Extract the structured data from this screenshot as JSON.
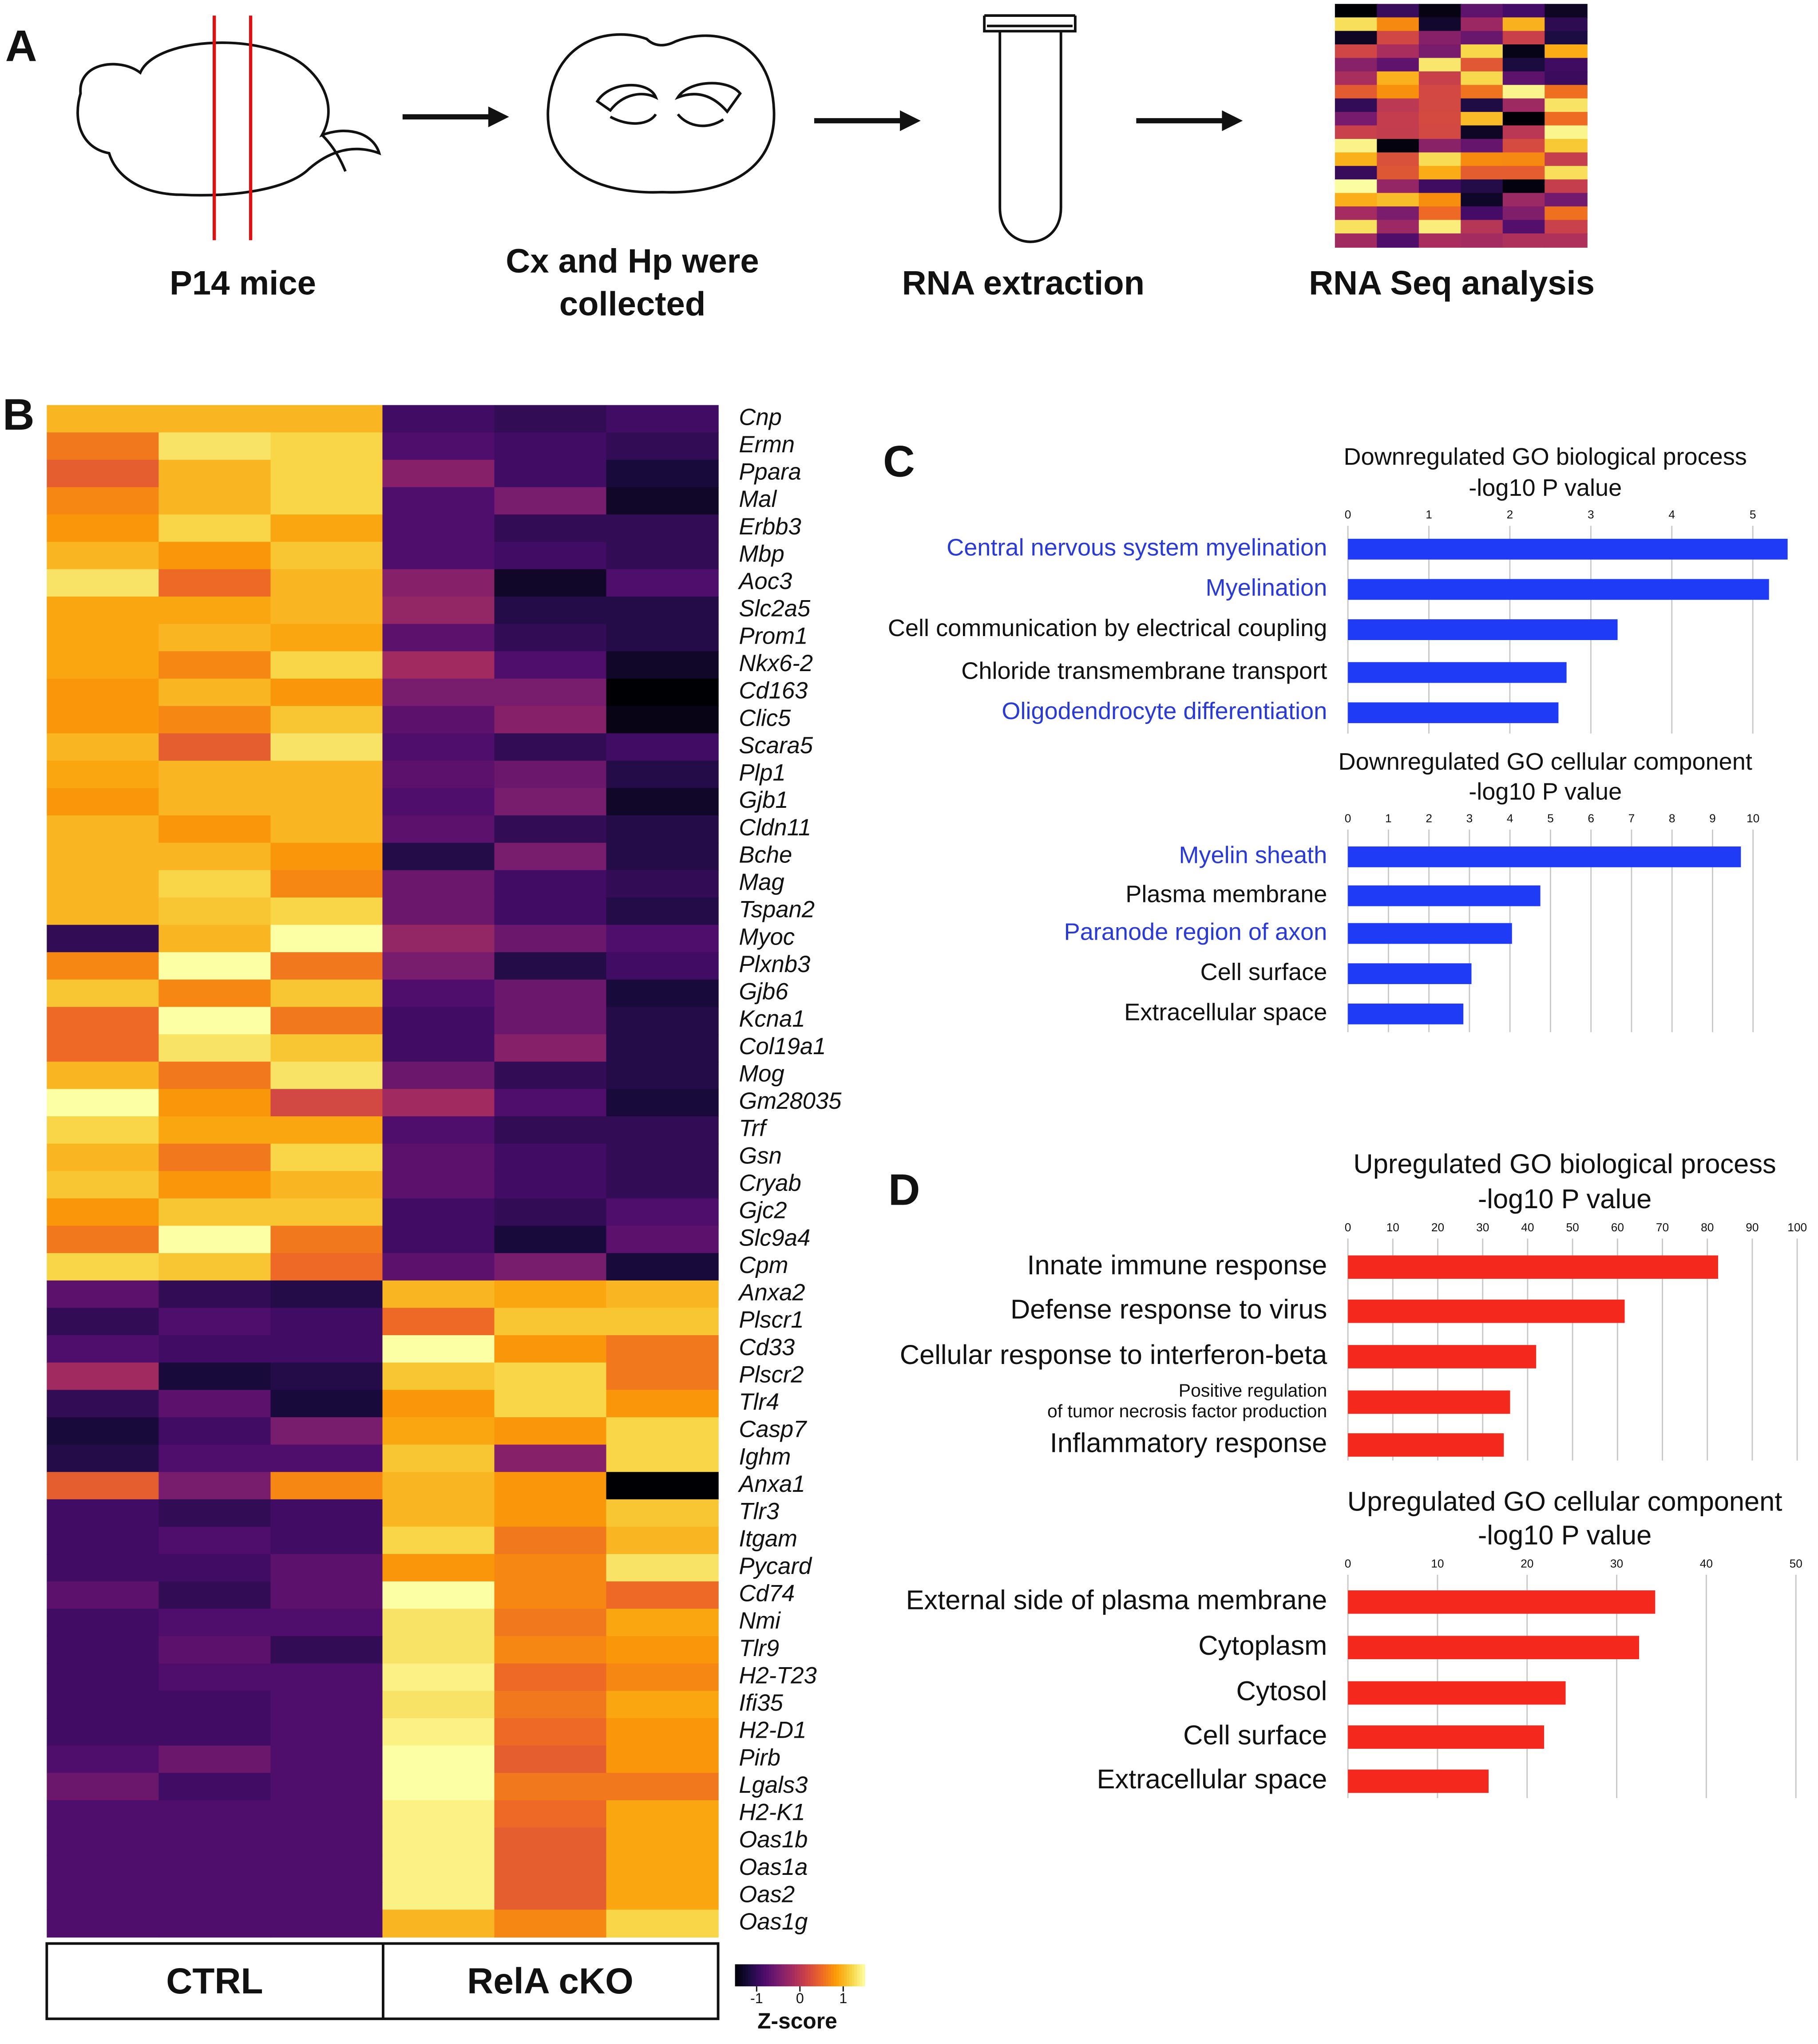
{
  "panels": [
    "A",
    "B",
    "C",
    "D"
  ],
  "workflow": {
    "steps": [
      [
        "P14 mice"
      ],
      [
        "Cx and Hp were",
        "collected"
      ],
      [
        "RNA extraction"
      ],
      [
        "RNA Seq analysis"
      ]
    ]
  },
  "chart_data": [
    {
      "type": "heatmap",
      "rows": [
        "Cnp",
        "Ermn",
        "Ppara",
        "Mal",
        "Erbb3",
        "Mbp",
        "Aoc3",
        "Slc2a5",
        "Prom1",
        "Nkx6-2",
        "Cd163",
        "Clic5",
        "Scara5",
        "Plp1",
        "Gjb1",
        "Cldn11",
        "Bche",
        "Mag",
        "Tspan2",
        "Myoc",
        "Plxnb3",
        "Gjb6",
        "Kcna1",
        "Col19a1",
        "Mog",
        "Gm28035",
        "Trf",
        "Gsn",
        "Cryab",
        "Gjc2",
        "Slc9a4",
        "Cpm",
        "Anxa2",
        "Plscr1",
        "Cd33",
        "Plscr2",
        "Tlr4",
        "Casp7",
        "Ighm",
        "Anxa1",
        "Tlr3",
        "Itgam",
        "Pycard",
        "Cd74",
        "Nmi",
        "Tlr9",
        "H2-T23",
        "Ifi35",
        "H2-D1",
        "Pirb",
        "Lgals3",
        "H2-K1",
        "Oas1b",
        "Oas1a",
        "Oas2",
        "Oas1g"
      ],
      "groups": [
        "CTRL",
        "RelA cKO"
      ],
      "values": [
        [
          1.0,
          1.0,
          1.0,
          -0.9,
          -1.0,
          -0.9
        ],
        [
          0.6,
          1.3,
          1.2,
          -0.8,
          -0.9,
          -1.0
        ],
        [
          0.4,
          1.0,
          1.2,
          -0.4,
          -0.9,
          -1.2
        ],
        [
          0.7,
          1.0,
          1.2,
          -0.8,
          -0.5,
          -1.3
        ],
        [
          0.8,
          1.2,
          0.9,
          -0.8,
          -1.0,
          -1.0
        ],
        [
          1.0,
          0.8,
          1.1,
          -0.8,
          -0.9,
          -1.0
        ],
        [
          1.3,
          0.5,
          1.0,
          -0.4,
          -1.3,
          -0.8
        ],
        [
          0.9,
          0.9,
          1.0,
          -0.3,
          -1.1,
          -1.1
        ],
        [
          0.9,
          1.0,
          0.9,
          -0.7,
          -1.0,
          -1.1
        ],
        [
          0.9,
          0.7,
          1.2,
          -0.2,
          -0.8,
          -1.3
        ],
        [
          0.8,
          1.0,
          0.8,
          -0.5,
          -0.5,
          -1.5
        ],
        [
          0.8,
          0.7,
          1.1,
          -0.7,
          -0.4,
          -1.4
        ],
        [
          1.0,
          0.4,
          1.3,
          -0.8,
          -1.0,
          -0.9
        ],
        [
          0.9,
          1.0,
          1.0,
          -0.7,
          -0.6,
          -1.1
        ],
        [
          0.8,
          1.0,
          1.0,
          -0.8,
          -0.5,
          -1.3
        ],
        [
          1.0,
          0.8,
          1.0,
          -0.7,
          -1.0,
          -1.1
        ],
        [
          1.0,
          1.0,
          0.8,
          -1.1,
          -0.5,
          -1.1
        ],
        [
          1.0,
          1.2,
          0.7,
          -0.6,
          -0.9,
          -1.0
        ],
        [
          1.0,
          1.1,
          1.2,
          -0.6,
          -0.9,
          -1.1
        ],
        [
          -1.0,
          1.0,
          1.6,
          -0.3,
          -0.6,
          -0.8
        ],
        [
          0.7,
          1.5,
          0.6,
          -0.5,
          -1.1,
          -0.9
        ],
        [
          1.1,
          0.7,
          1.1,
          -0.8,
          -0.6,
          -1.2
        ],
        [
          0.5,
          1.6,
          0.6,
          -0.9,
          -0.6,
          -1.1
        ],
        [
          0.5,
          1.3,
          1.1,
          -0.9,
          -0.4,
          -1.1
        ],
        [
          1.0,
          0.6,
          1.3,
          -0.6,
          -1.0,
          -1.1
        ],
        [
          1.5,
          0.8,
          0.2,
          -0.2,
          -0.8,
          -1.2
        ],
        [
          1.2,
          0.9,
          0.9,
          -0.8,
          -1.0,
          -1.0
        ],
        [
          1.0,
          0.6,
          1.2,
          -0.7,
          -0.9,
          -1.0
        ],
        [
          1.1,
          0.8,
          1.0,
          -0.7,
          -0.9,
          -1.0
        ],
        [
          0.8,
          1.1,
          1.1,
          -0.9,
          -1.0,
          -0.8
        ],
        [
          0.6,
          1.5,
          0.6,
          -0.9,
          -1.2,
          -0.7
        ],
        [
          1.2,
          1.1,
          0.5,
          -0.7,
          -0.5,
          -1.2
        ],
        [
          -0.7,
          -1.0,
          -1.1,
          1.0,
          0.9,
          1.0
        ],
        [
          -1.0,
          -0.8,
          -0.9,
          0.5,
          1.1,
          1.1
        ],
        [
          -0.8,
          -0.9,
          -0.9,
          1.5,
          0.8,
          0.6
        ],
        [
          -0.2,
          -1.2,
          -1.1,
          1.1,
          1.2,
          0.6
        ],
        [
          -1.0,
          -0.7,
          -1.2,
          0.8,
          1.2,
          0.8
        ],
        [
          -1.2,
          -0.9,
          -0.5,
          0.9,
          0.8,
          1.2
        ],
        [
          -1.1,
          -0.8,
          -0.8,
          1.1,
          -0.4,
          1.2
        ],
        [
          0.4,
          -0.5,
          0.7,
          1.0,
          0.8,
          -1.7
        ],
        [
          -0.9,
          -1.0,
          -0.9,
          1.0,
          0.8,
          1.1
        ],
        [
          -0.9,
          -0.8,
          -0.9,
          1.2,
          0.6,
          1.0
        ],
        [
          -0.9,
          -0.9,
          -0.7,
          0.8,
          0.7,
          1.3
        ],
        [
          -0.7,
          -1.0,
          -0.7,
          1.5,
          0.7,
          0.5
        ],
        [
          -0.9,
          -0.8,
          -0.8,
          1.3,
          0.6,
          0.9
        ],
        [
          -0.9,
          -0.7,
          -1.0,
          1.3,
          0.7,
          0.8
        ],
        [
          -0.9,
          -0.8,
          -0.8,
          1.4,
          0.5,
          0.7
        ],
        [
          -0.9,
          -0.9,
          -0.8,
          1.3,
          0.6,
          0.9
        ],
        [
          -0.9,
          -0.9,
          -0.8,
          1.4,
          0.5,
          0.8
        ],
        [
          -0.8,
          -0.6,
          -0.8,
          1.5,
          0.4,
          0.8
        ],
        [
          -0.6,
          -0.9,
          -0.8,
          1.5,
          0.6,
          0.6
        ],
        [
          -0.8,
          -0.8,
          -0.8,
          1.4,
          0.5,
          0.9
        ],
        [
          -0.8,
          -0.8,
          -0.8,
          1.4,
          0.4,
          0.9
        ],
        [
          -0.8,
          -0.8,
          -0.8,
          1.4,
          0.4,
          0.9
        ],
        [
          -0.8,
          -0.8,
          -0.8,
          1.4,
          0.4,
          0.9
        ],
        [
          -0.8,
          -0.8,
          -0.8,
          1.0,
          0.7,
          1.2
        ]
      ],
      "zlim": [
        -1.5,
        1.5
      ],
      "colorscale": [
        "#000004",
        "#1b0c41",
        "#4a0c6b",
        "#781c6d",
        "#a52c60",
        "#cf4446",
        "#ed6925",
        "#fb9b06",
        "#f7d13d",
        "#fcffa4"
      ],
      "colorbar_ticks": [
        -1,
        0,
        1
      ],
      "colorbar_label": "Z-score"
    },
    {
      "type": "barh",
      "title": "Downregulated GO biological process",
      "xlabel": "-log10 P value",
      "categories": [
        "Central nervous system myelination",
        "Myelination",
        "Cell communication by electrical coupling",
        "Chloride transmembrane transport",
        "Oligodendrocyte differentiation"
      ],
      "values": [
        5.43,
        5.2,
        3.33,
        2.7,
        2.6
      ],
      "color": "#1f3bf5",
      "category_colors": [
        "#2a3ad6",
        "#2a3ad6",
        "#111111",
        "#111111",
        "#2a3ad6"
      ],
      "xlim": [
        0,
        5.5
      ],
      "xticks": [
        0,
        1,
        2,
        3,
        4,
        5
      ],
      "grid": true
    },
    {
      "type": "barh",
      "title": "Downregulated GO cellular component",
      "xlabel": "-log10 P value",
      "categories": [
        "Myelin sheath",
        "Plasma membrane",
        "Paranode region of axon",
        "Cell surface",
        "Extracellular space"
      ],
      "values": [
        9.7,
        4.75,
        4.05,
        3.05,
        2.85
      ],
      "color": "#1f3bf5",
      "category_colors": [
        "#2a3ad6",
        "#111111",
        "#2a3ad6",
        "#111111",
        "#111111"
      ],
      "xlim": [
        0,
        10
      ],
      "xticks": [
        0,
        1,
        2,
        3,
        4,
        5,
        6,
        7,
        8,
        9,
        10
      ],
      "grid": true
    },
    {
      "type": "barh",
      "title": "Upregulated GO biological process",
      "xlabel": "-log10 P value",
      "categories": [
        "Innate immune response",
        "Defense response to virus",
        "Cellular response to interferon-beta",
        [
          "Positive regulation",
          "of tumor necrosis factor production"
        ],
        "Inflammatory response"
      ],
      "values": [
        82.4,
        61.6,
        41.9,
        36.1,
        34.7
      ],
      "color": "#f5281e",
      "xlim": [
        0,
        100
      ],
      "xticks": [
        0,
        10,
        20,
        30,
        40,
        50,
        60,
        70,
        80,
        90,
        100
      ],
      "grid": true
    },
    {
      "type": "barh",
      "title": "Upregulated GO cellular component",
      "xlabel": "-log10 P value",
      "categories": [
        "External side of plasma membrane",
        "Cytoplasm",
        "Cytosol",
        "Cell surface",
        "Extracellular space"
      ],
      "values": [
        34.3,
        32.5,
        24.3,
        21.9,
        15.7
      ],
      "color": "#f5281e",
      "xlim": [
        0,
        50
      ],
      "xticks": [
        0,
        10,
        20,
        30,
        40,
        50
      ],
      "grid": true
    }
  ]
}
